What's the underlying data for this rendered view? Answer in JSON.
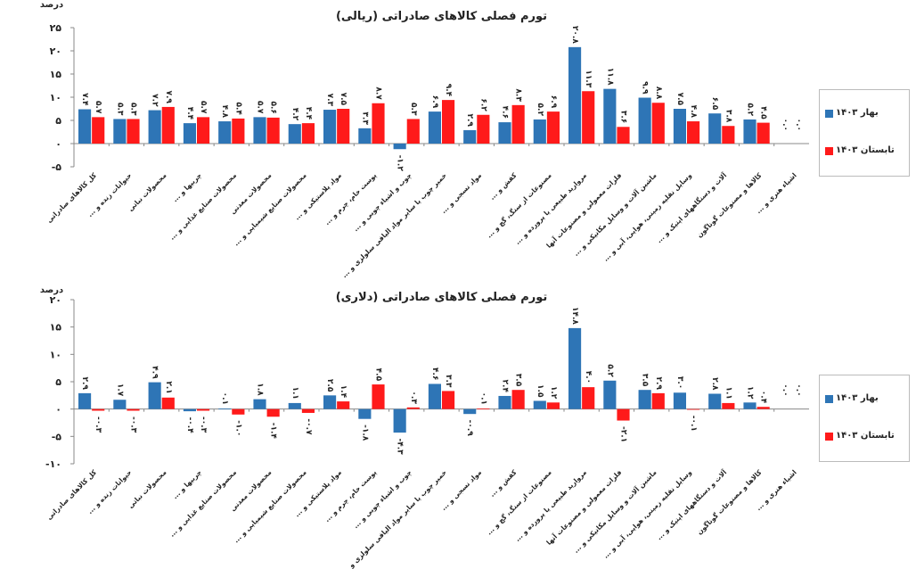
{
  "colors": {
    "series1": "#2E75B6",
    "series2": "#FF1A1A",
    "axis": "#888888",
    "text": "#222222"
  },
  "chart_data": [
    {
      "type": "bar",
      "title": "تورم فصلی کالاهای صادراتی (ریالی)",
      "ylabel": "درصد",
      "ylim": [
        -5,
        25
      ],
      "yticks": [
        -5,
        0,
        5,
        10,
        15,
        20,
        25
      ],
      "ytick_labels": [
        "-۵",
        "۰",
        "۵",
        "۱۰",
        "۱۵",
        "۲۰",
        "۲۵"
      ],
      "grid": false,
      "legend_position": "right",
      "categories": [
        "کل کالاهای صادراتی",
        "حیوانات زنده و ...",
        "محصولات نباتی",
        "چربیها و ...",
        "محصولات صنایع غذایی و ...",
        "محصولات معدنی",
        "محصولات صنایع شیمیایی و ...",
        "مواد پلاستیکی و ...",
        "پوست خام، چرم و ...",
        "چوب و اشیاء چوبی و ...",
        "خمیر چوب یا سایر مواد الیافی سلولزی و ...",
        "مواد نسجی و ...",
        "کفش و ...",
        "مصنوعات از سنگ، گچ و ...",
        "مروارید طبیعی یا پرورده و ...",
        "فلزات معمولی و مصنوعات آنها",
        "ماشین آلات و وسایل مکانیکی و ...",
        "وسایل نقلیه زمینی، هوایی، آبی و ...",
        "آلات و دستگاههای اپتیک و ...",
        "کالاها و مصنوعات گوناگون",
        "اشیاء هنری و ..."
      ],
      "series": [
        {
          "name": "بهار ۱۴۰۳",
          "values": [
            7.4,
            5.3,
            7.2,
            4.4,
            4.8,
            5.7,
            4.2,
            7.3,
            3.3,
            -1.2,
            6.9,
            2.9,
            4.6,
            5.2,
            20.8,
            11.8,
            9.9,
            7.5,
            6.5,
            5.2,
            null
          ],
          "labels": [
            "۷.۴",
            "۵.۳",
            "۷.۲",
            "۴.۴",
            "۴.۸",
            "۵.۷",
            "۴.۲",
            "۷.۳",
            "۳.۳",
            "-۱.۲",
            "۶.۹",
            "۲.۹",
            "۴.۶",
            "۵.۲",
            "۲۰.۸",
            "۱۱.۸",
            "۹.۹",
            "۷.۵",
            "۶.۵",
            "۵.۲",
            "۰.۰"
          ]
        },
        {
          "name": "تابستان ۱۴۰۳",
          "values": [
            5.7,
            5.3,
            7.9,
            5.7,
            5.4,
            5.6,
            4.4,
            7.5,
            8.7,
            5.3,
            9.4,
            6.2,
            8.3,
            6.9,
            11.3,
            3.6,
            8.8,
            4.8,
            3.8,
            4.5,
            null
          ],
          "labels": [
            "۵.۷",
            "۵.۳",
            "۷.۹",
            "۵.۷",
            "۵.۴",
            "۵.۶",
            "۴.۴",
            "۷.۵",
            "۸.۷",
            "۵.۳",
            "۹.۴",
            "۶.۲",
            "۸.۳",
            "۶.۹",
            "۱۱.۳",
            "۳.۶",
            "۸.۸",
            "۴.۸",
            "۳.۸",
            "۴.۵",
            "۰.۰"
          ]
        }
      ]
    },
    {
      "type": "bar",
      "title": "تورم فصلی کالاهای صادراتی (دلاری)",
      "ylabel": "درصد",
      "ylim": [
        -10,
        20
      ],
      "yticks": [
        -10,
        -5,
        0,
        5,
        10,
        15,
        20
      ],
      "ytick_labels": [
        "-۱۰",
        "-۵",
        "۰",
        "۵",
        "۱۰",
        "۱۵",
        "۲۰"
      ],
      "grid": false,
      "legend_position": "right",
      "categories": [
        "کل کالاهای صادراتی",
        "حیوانات زنده و ...",
        "محصولات نباتی",
        "چربیها و ...",
        "محصولات صنایع غذایی و ...",
        "محصولات معدنی",
        "محصولات صنایع شیمیایی و ...",
        "مواد پلاستیکی و ...",
        "پوست خام، چرم و ...",
        "چوب و اشیاء چوبی و ...",
        "خمیر چوب یا سایر مواد الیافی سلولزی و ...",
        "مواد نسجی و ...",
        "کفش و ...",
        "مصنوعات از سنگ، گچ و ...",
        "مروارید طبیعی یا پرورده و ...",
        "فلزات معمولی و مصنوعات آنها",
        "ماشین آلات و وسایل مکانیکی و ...",
        "وسایل نقلیه زمینی، هوایی، آبی و ...",
        "آلات و دستگاههای اپتیک و ...",
        "کالاها و مصنوعات گوناگون",
        "اشیاء هنری و ..."
      ],
      "series": [
        {
          "name": "بهار ۱۴۰۳",
          "values": [
            2.9,
            1.7,
            4.9,
            -0.4,
            0.1,
            1.8,
            1.1,
            2.5,
            -1.8,
            -4.3,
            4.6,
            -0.9,
            2.4,
            1.5,
            14.8,
            5.2,
            3.5,
            3.0,
            2.8,
            1.2,
            null
          ],
          "labels": [
            "۲.۹",
            "۱.۷",
            "۴.۹",
            "-۰.۴",
            "۰.۱",
            "۱.۸",
            "۱.۱",
            "۲.۵",
            "-۱.۸",
            "-۴.۳",
            "۴.۶",
            "-۰.۹",
            "۲.۴",
            "۱.۵",
            "۱۴.۸",
            "۵.۲",
            "۳.۵",
            "۳.۰",
            "۲.۸",
            "۱.۲",
            "۰.۰"
          ]
        },
        {
          "name": "تابستان ۱۴۰۳",
          "values": [
            -0.3,
            -0.3,
            2.1,
            -0.3,
            -1.0,
            -1.4,
            -0.7,
            1.4,
            4.5,
            0.3,
            3.3,
            0.1,
            3.5,
            1.2,
            4.0,
            -2.1,
            2.9,
            -0.1,
            1.1,
            0.4,
            null
          ],
          "labels": [
            "-۰.۳",
            "-۰.۳",
            "۲.۱",
            "-۰.۳",
            "-۱.۰",
            "-۱.۴",
            "-۰.۷",
            "۱.۴",
            "۴.۵",
            "۰.۳",
            "۳.۳",
            "۰.۱",
            "۳.۵",
            "۱.۲",
            "۴.۰",
            "-۲.۱",
            "۲.۹",
            "-۰.۱",
            "۱.۱",
            "۰.۴",
            "۰.۰"
          ]
        }
      ]
    }
  ]
}
